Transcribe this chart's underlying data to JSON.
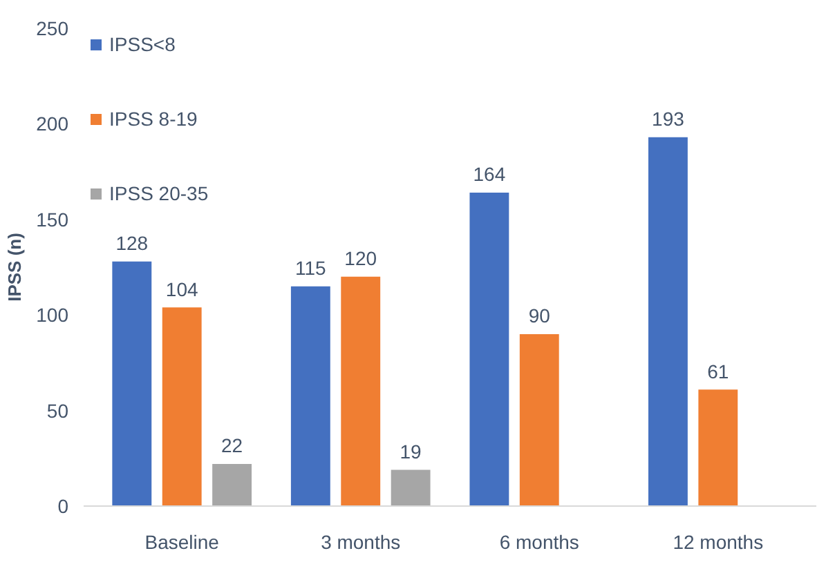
{
  "chart_data": {
    "type": "bar",
    "ylabel": "IPSS (n)",
    "categories": [
      "Baseline",
      "3 months",
      "6 months",
      "12 months"
    ],
    "series": [
      {
        "name": "IPSS<8",
        "color": "#4470c0",
        "values": [
          128,
          115,
          164,
          193
        ]
      },
      {
        "name": "IPSS 8-19",
        "color": "#f07e32",
        "values": [
          104,
          120,
          90,
          61
        ]
      },
      {
        "name": "IPSS 20-35",
        "color": "#a6a6a6",
        "values": [
          22,
          19,
          null,
          null
        ]
      }
    ],
    "ylim": [
      0,
      250
    ],
    "yticks": [
      0,
      50,
      100,
      150,
      200,
      250
    ],
    "grid": false,
    "legend": "top left",
    "data_labels": true
  }
}
